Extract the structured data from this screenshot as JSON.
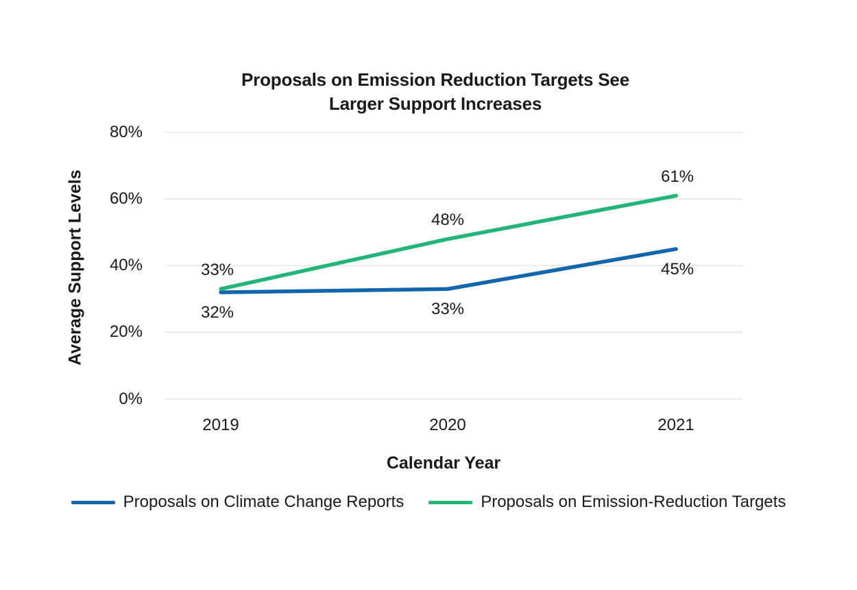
{
  "chart_data": {
    "type": "line",
    "title": "Proposals on Emission Reduction Targets See Larger Support Increases",
    "title_lines": [
      "Proposals on Emission Reduction Targets See",
      "Larger Support Increases"
    ],
    "xlabel": "Calendar Year",
    "ylabel": "Average Support Levels",
    "categories": [
      "2019",
      "2020",
      "2021"
    ],
    "series": [
      {
        "name": "Proposals on Climate Change Reports",
        "values": [
          32,
          33,
          45
        ],
        "data_labels": [
          "32%",
          "33%",
          "45%"
        ],
        "color": "#1166ae",
        "label_position": "below"
      },
      {
        "name": "Proposals on Emission-Reduction Targets",
        "values": [
          33,
          48,
          61
        ],
        "data_labels": [
          "33%",
          "48%",
          "61%"
        ],
        "color": "#23b577",
        "label_position": "above"
      }
    ],
    "ylim": [
      0,
      80
    ],
    "yticks": [
      0,
      20,
      40,
      60,
      80
    ],
    "ytick_labels": [
      "0%",
      "20%",
      "40%",
      "60%",
      "80%"
    ],
    "grid": "horizontal",
    "gridline_color": "#e7e7e7",
    "text_color": "#1a1a1a",
    "background_color": "#ffffff",
    "legend_position": "bottom"
  }
}
